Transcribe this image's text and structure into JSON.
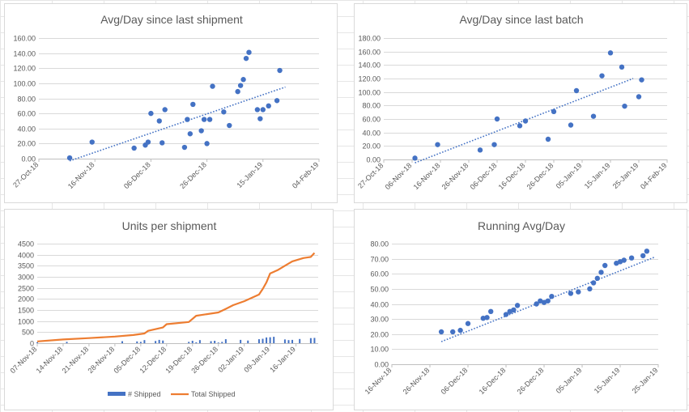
{
  "colors": {
    "marker": "#4472c4",
    "trendline": "#4472c4",
    "total_line": "#ed7d31",
    "bars": "#4472c4",
    "gridline": "#d9d9d9",
    "axis": "#bfbfbf",
    "text": "#595959"
  },
  "chart_data": [
    {
      "type": "scatter",
      "title": "Avg/Day since last shipment",
      "xlabel": "",
      "ylabel": "",
      "x_is_date": true,
      "xlim": [
        "2018-10-27",
        "2019-02-04"
      ],
      "x_ticks": [
        "2018-10-27",
        "2018-11-16",
        "2018-12-06",
        "2018-12-26",
        "2019-01-15",
        "2019-02-04"
      ],
      "x_tick_labels": [
        "27-Oct-18",
        "16-Nov-18",
        "06-Dec-18",
        "26-Dec-18",
        "15-Jan-19",
        "04-Feb-19"
      ],
      "ylim": [
        0,
        160
      ],
      "y_ticks": [
        0,
        20,
        40,
        60,
        80,
        100,
        120,
        140,
        160
      ],
      "y_tick_labels": [
        "0.00",
        "20.00",
        "40.00",
        "60.00",
        "80.00",
        "100.00",
        "120.00",
        "140.00",
        "160.00"
      ],
      "grid": true,
      "trendline": {
        "style": "linear dotted",
        "x": [
          "2018-11-07",
          "2019-01-23"
        ],
        "y": [
          -3,
          95
        ]
      },
      "points": [
        {
          "x": "2018-11-07",
          "y": 1
        },
        {
          "x": "2018-11-15",
          "y": 22
        },
        {
          "x": "2018-11-30",
          "y": 14
        },
        {
          "x": "2018-12-04",
          "y": 18
        },
        {
          "x": "2018-12-05",
          "y": 22
        },
        {
          "x": "2018-12-06",
          "y": 60
        },
        {
          "x": "2018-12-09",
          "y": 50
        },
        {
          "x": "2018-12-10",
          "y": 21
        },
        {
          "x": "2018-12-11",
          "y": 65
        },
        {
          "x": "2018-12-18",
          "y": 15
        },
        {
          "x": "2018-12-19",
          "y": 52
        },
        {
          "x": "2018-12-20",
          "y": 33
        },
        {
          "x": "2018-12-21",
          "y": 72
        },
        {
          "x": "2018-12-24",
          "y": 37
        },
        {
          "x": "2018-12-25",
          "y": 52
        },
        {
          "x": "2018-12-26",
          "y": 20
        },
        {
          "x": "2018-12-27",
          "y": 52
        },
        {
          "x": "2018-12-28",
          "y": 96
        },
        {
          "x": "2019-01-01",
          "y": 62
        },
        {
          "x": "2019-01-03",
          "y": 44
        },
        {
          "x": "2019-01-06",
          "y": 89
        },
        {
          "x": "2019-01-07",
          "y": 97
        },
        {
          "x": "2019-01-08",
          "y": 105
        },
        {
          "x": "2019-01-09",
          "y": 133
        },
        {
          "x": "2019-01-10",
          "y": 141
        },
        {
          "x": "2019-01-13",
          "y": 65
        },
        {
          "x": "2019-01-14",
          "y": 53
        },
        {
          "x": "2019-01-15",
          "y": 65
        },
        {
          "x": "2019-01-17",
          "y": 70
        },
        {
          "x": "2019-01-20",
          "y": 77
        },
        {
          "x": "2019-01-21",
          "y": 117
        }
      ]
    },
    {
      "type": "scatter",
      "title": "Avg/Day since last batch",
      "xlabel": "",
      "ylabel": "",
      "x_is_date": true,
      "xlim": [
        "2018-10-27",
        "2019-02-04"
      ],
      "x_ticks": [
        "2018-10-27",
        "2018-11-06",
        "2018-11-16",
        "2018-11-26",
        "2018-12-06",
        "2018-12-16",
        "2018-12-26",
        "2019-01-05",
        "2019-01-15",
        "2019-01-25",
        "2019-02-04"
      ],
      "x_tick_labels": [
        "27-Oct-18",
        "06-Nov-18",
        "16-Nov-18",
        "26-Nov-18",
        "06-Dec-18",
        "16-Dec-18",
        "26-Dec-18",
        "05-Jan-19",
        "15-Jan-19",
        "25-Jan-19",
        "04-Feb-19"
      ],
      "ylim": [
        0,
        180
      ],
      "y_ticks": [
        0,
        20,
        40,
        60,
        80,
        100,
        120,
        140,
        160,
        180
      ],
      "y_tick_labels": [
        "0.00",
        "20.00",
        "40.00",
        "60.00",
        "80.00",
        "100.00",
        "120.00",
        "140.00",
        "160.00",
        "180.00"
      ],
      "grid": true,
      "trendline": {
        "style": "linear dotted",
        "x": [
          "2018-11-07",
          "2019-01-23"
        ],
        "y": [
          -5,
          120
        ]
      },
      "points": [
        {
          "x": "2018-11-07",
          "y": 2
        },
        {
          "x": "2018-11-15",
          "y": 22
        },
        {
          "x": "2018-11-30",
          "y": 14
        },
        {
          "x": "2018-12-05",
          "y": 22
        },
        {
          "x": "2018-12-06",
          "y": 60
        },
        {
          "x": "2018-12-14",
          "y": 50
        },
        {
          "x": "2018-12-16",
          "y": 57
        },
        {
          "x": "2018-12-24",
          "y": 30
        },
        {
          "x": "2018-12-26",
          "y": 71
        },
        {
          "x": "2019-01-01",
          "y": 51
        },
        {
          "x": "2019-01-03",
          "y": 102
        },
        {
          "x": "2019-01-09",
          "y": 64
        },
        {
          "x": "2019-01-12",
          "y": 124
        },
        {
          "x": "2019-01-15",
          "y": 158
        },
        {
          "x": "2019-01-19",
          "y": 137
        },
        {
          "x": "2019-01-20",
          "y": 79
        },
        {
          "x": "2019-01-25",
          "y": 93
        },
        {
          "x": "2019-01-26",
          "y": 118
        }
      ]
    },
    {
      "type": "bar_line_combo",
      "title": "Units per shipment",
      "xlabel": "",
      "ylabel": "",
      "x_is_date": true,
      "xlim": [
        "2018-11-07",
        "2019-01-22"
      ],
      "x_ticks": [
        "2018-11-07",
        "2018-11-14",
        "2018-11-21",
        "2018-11-28",
        "2018-12-05",
        "2018-12-12",
        "2018-12-19",
        "2018-12-26",
        "2019-01-02",
        "2019-01-09",
        "2019-01-16"
      ],
      "x_tick_labels": [
        "07-Nov-18",
        "14-Nov-18",
        "21-Nov-18",
        "28-Nov-18",
        "05-Dec-18",
        "12-Dec-18",
        "19-Dec-18",
        "26-Dec-18",
        "02-Jan-19",
        "09-Jan-19",
        "16-Jan-19"
      ],
      "ylim": [
        0,
        4500
      ],
      "y_ticks": [
        0,
        500,
        1000,
        1500,
        2000,
        2500,
        3000,
        3500,
        4000,
        4500
      ],
      "y_tick_labels": [
        "0",
        "500",
        "1000",
        "1500",
        "2000",
        "2500",
        "3000",
        "3500",
        "4000",
        "4500"
      ],
      "grid": true,
      "legend_position": "bottom",
      "series": [
        {
          "name": "# Shipped",
          "kind": "bar",
          "points": [
            {
              "x": "2018-11-07",
              "y": 40
            },
            {
              "x": "2018-11-15",
              "y": 60
            },
            {
              "x": "2018-11-30",
              "y": 90
            },
            {
              "x": "2018-12-04",
              "y": 80
            },
            {
              "x": "2018-12-05",
              "y": 60
            },
            {
              "x": "2018-12-06",
              "y": 140
            },
            {
              "x": "2018-12-09",
              "y": 100
            },
            {
              "x": "2018-12-10",
              "y": 150
            },
            {
              "x": "2018-12-11",
              "y": 120
            },
            {
              "x": "2018-12-18",
              "y": 60
            },
            {
              "x": "2018-12-19",
              "y": 110
            },
            {
              "x": "2018-12-20",
              "y": 40
            },
            {
              "x": "2018-12-21",
              "y": 140
            },
            {
              "x": "2018-12-24",
              "y": 90
            },
            {
              "x": "2018-12-25",
              "y": 110
            },
            {
              "x": "2018-12-26",
              "y": 30
            },
            {
              "x": "2018-12-27",
              "y": 60
            },
            {
              "x": "2018-12-28",
              "y": 180
            },
            {
              "x": "2019-01-01",
              "y": 150
            },
            {
              "x": "2019-01-03",
              "y": 120
            },
            {
              "x": "2019-01-06",
              "y": 180
            },
            {
              "x": "2019-01-07",
              "y": 200
            },
            {
              "x": "2019-01-08",
              "y": 260
            },
            {
              "x": "2019-01-09",
              "y": 270
            },
            {
              "x": "2019-01-10",
              "y": 290
            },
            {
              "x": "2019-01-13",
              "y": 170
            },
            {
              "x": "2019-01-14",
              "y": 140
            },
            {
              "x": "2019-01-15",
              "y": 150
            },
            {
              "x": "2019-01-17",
              "y": 190
            },
            {
              "x": "2019-01-20",
              "y": 230
            },
            {
              "x": "2019-01-21",
              "y": 240
            }
          ]
        },
        {
          "name": "Total Shipped",
          "kind": "line",
          "points": [
            {
              "x": "2018-11-07",
              "y": 80
            },
            {
              "x": "2018-11-14",
              "y": 170
            },
            {
              "x": "2018-11-21",
              "y": 230
            },
            {
              "x": "2018-11-28",
              "y": 300
            },
            {
              "x": "2018-12-03",
              "y": 370
            },
            {
              "x": "2018-12-06",
              "y": 440
            },
            {
              "x": "2018-12-07",
              "y": 560
            },
            {
              "x": "2018-12-11",
              "y": 710
            },
            {
              "x": "2018-12-12",
              "y": 860
            },
            {
              "x": "2018-12-18",
              "y": 960
            },
            {
              "x": "2018-12-20",
              "y": 1240
            },
            {
              "x": "2018-12-26",
              "y": 1390
            },
            {
              "x": "2018-12-28",
              "y": 1550
            },
            {
              "x": "2018-12-30",
              "y": 1720
            },
            {
              "x": "2019-01-02",
              "y": 1900
            },
            {
              "x": "2019-01-04",
              "y": 2050
            },
            {
              "x": "2019-01-06",
              "y": 2200
            },
            {
              "x": "2019-01-07",
              "y": 2450
            },
            {
              "x": "2019-01-08",
              "y": 2750
            },
            {
              "x": "2019-01-09",
              "y": 3150
            },
            {
              "x": "2019-01-11",
              "y": 3300
            },
            {
              "x": "2019-01-13",
              "y": 3500
            },
            {
              "x": "2019-01-15",
              "y": 3700
            },
            {
              "x": "2019-01-18",
              "y": 3850
            },
            {
              "x": "2019-01-20",
              "y": 3900
            },
            {
              "x": "2019-01-21",
              "y": 4080
            }
          ]
        }
      ]
    },
    {
      "type": "scatter",
      "title": "Running Avg/Day",
      "xlabel": "",
      "ylabel": "",
      "x_is_date": true,
      "xlim": [
        "2018-11-16",
        "2019-01-25"
      ],
      "x_ticks": [
        "2018-11-16",
        "2018-11-26",
        "2018-12-06",
        "2018-12-16",
        "2018-12-26",
        "2019-01-05",
        "2019-01-15",
        "2019-01-25"
      ],
      "x_tick_labels": [
        "16-Nov-18",
        "26-Nov-18",
        "06-Dec-18",
        "16-Dec-18",
        "26-Dec-18",
        "05-Jan-19",
        "15-Jan-19",
        "25-Jan-19"
      ],
      "ylim": [
        0,
        80
      ],
      "y_ticks": [
        0,
        10,
        20,
        30,
        40,
        50,
        60,
        70,
        80
      ],
      "y_tick_labels": [
        "0.00",
        "10.00",
        "20.00",
        "30.00",
        "40.00",
        "50.00",
        "60.00",
        "70.00",
        "80.00"
      ],
      "grid": true,
      "trendline": {
        "style": "linear dotted",
        "x": [
          "2018-11-29",
          "2019-01-24"
        ],
        "y": [
          15,
          71
        ]
      },
      "points": [
        {
          "x": "2018-11-29",
          "y": 21.5
        },
        {
          "x": "2018-12-02",
          "y": 21.5
        },
        {
          "x": "2018-12-04",
          "y": 22.5
        },
        {
          "x": "2018-12-06",
          "y": 27
        },
        {
          "x": "2018-12-10",
          "y": 30.5
        },
        {
          "x": "2018-12-11",
          "y": 31
        },
        {
          "x": "2018-12-12",
          "y": 35
        },
        {
          "x": "2018-12-16",
          "y": 33
        },
        {
          "x": "2018-12-17",
          "y": 35
        },
        {
          "x": "2018-12-18",
          "y": 36
        },
        {
          "x": "2018-12-19",
          "y": 39
        },
        {
          "x": "2018-12-24",
          "y": 40
        },
        {
          "x": "2018-12-25",
          "y": 42
        },
        {
          "x": "2018-12-26",
          "y": 41
        },
        {
          "x": "2018-12-27",
          "y": 42
        },
        {
          "x": "2018-12-28",
          "y": 45
        },
        {
          "x": "2019-01-02",
          "y": 47
        },
        {
          "x": "2019-01-04",
          "y": 48
        },
        {
          "x": "2019-01-07",
          "y": 50
        },
        {
          "x": "2019-01-08",
          "y": 54
        },
        {
          "x": "2019-01-09",
          "y": 57
        },
        {
          "x": "2019-01-10",
          "y": 61
        },
        {
          "x": "2019-01-11",
          "y": 65.5
        },
        {
          "x": "2019-01-14",
          "y": 67
        },
        {
          "x": "2019-01-15",
          "y": 68
        },
        {
          "x": "2019-01-16",
          "y": 69
        },
        {
          "x": "2019-01-18",
          "y": 70.5
        },
        {
          "x": "2019-01-21",
          "y": 72
        },
        {
          "x": "2019-01-22",
          "y": 75
        }
      ]
    }
  ]
}
